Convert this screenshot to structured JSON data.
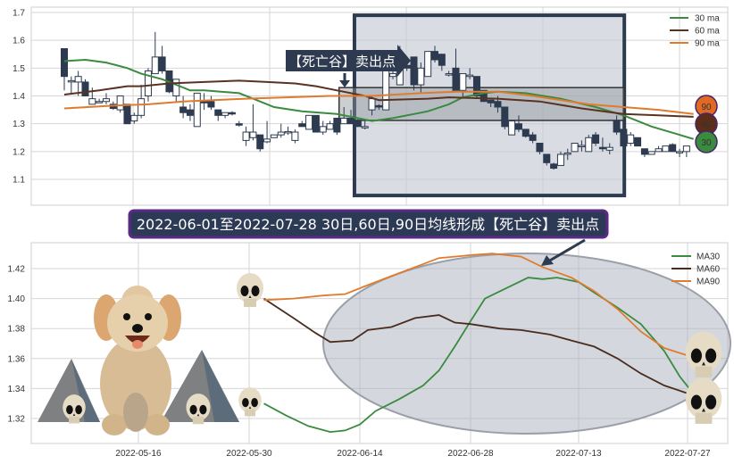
{
  "chart_data": [
    {
      "type": "candlestick",
      "title": "",
      "ylim": [
        1.02,
        1.72
      ],
      "yticks": [
        "1.1",
        "1.2",
        "1.3",
        "1.4",
        "1.5",
        "1.6",
        "1.7"
      ],
      "grid": true,
      "legend_placement": "top-right",
      "legend": [
        "30 ma",
        "60 ma",
        "90 ma"
      ],
      "candles_ohlc": [
        [
          1.57,
          1.57,
          1.42,
          1.47
        ],
        [
          1.455,
          1.47,
          1.41,
          1.455
        ],
        [
          1.45,
          1.49,
          1.4,
          1.47
        ],
        [
          1.45,
          1.46,
          1.4,
          1.4
        ],
        [
          1.37,
          1.43,
          1.37,
          1.39
        ],
        [
          1.38,
          1.39,
          1.375,
          1.38
        ],
        [
          1.38,
          1.41,
          1.37,
          1.39
        ],
        [
          1.37,
          1.38,
          1.35,
          1.355
        ],
        [
          1.35,
          1.4,
          1.34,
          1.4
        ],
        [
          1.37,
          1.37,
          1.3,
          1.3
        ],
        [
          1.31,
          1.34,
          1.3,
          1.33
        ],
        [
          1.33,
          1.44,
          1.32,
          1.39
        ],
        [
          1.4,
          1.5,
          1.38,
          1.49
        ],
        [
          1.48,
          1.63,
          1.48,
          1.54
        ],
        [
          1.54,
          1.58,
          1.48,
          1.49
        ],
        [
          1.49,
          1.49,
          1.41,
          1.415
        ],
        [
          1.4,
          1.46,
          1.38,
          1.46
        ],
        [
          1.36,
          1.4,
          1.32,
          1.34
        ],
        [
          1.35,
          1.37,
          1.31,
          1.33
        ],
        [
          1.29,
          1.41,
          1.29,
          1.41
        ],
        [
          1.38,
          1.41,
          1.35,
          1.375
        ],
        [
          1.38,
          1.4,
          1.35,
          1.36
        ],
        [
          1.35,
          1.35,
          1.31,
          1.33
        ],
        [
          1.33,
          1.34,
          1.32,
          1.34
        ],
        [
          1.34,
          1.345,
          1.33,
          1.335
        ],
        [
          1.3,
          1.31,
          1.29,
          1.295
        ],
        [
          1.24,
          1.29,
          1.22,
          1.27
        ],
        [
          1.25,
          1.37,
          1.24,
          1.27
        ],
        [
          1.26,
          1.26,
          1.2,
          1.21
        ],
        [
          1.235,
          1.31,
          1.23,
          1.245
        ],
        [
          1.25,
          1.26,
          1.25,
          1.26
        ],
        [
          1.26,
          1.3,
          1.25,
          1.27
        ],
        [
          1.27,
          1.29,
          1.26,
          1.272
        ],
        [
          1.24,
          1.28,
          1.23,
          1.27
        ],
        [
          1.3,
          1.31,
          1.29,
          1.29
        ],
        [
          1.28,
          1.33,
          1.28,
          1.33
        ],
        [
          1.33,
          1.33,
          1.27,
          1.27
        ],
        [
          1.27,
          1.31,
          1.26,
          1.29
        ],
        [
          1.28,
          1.31,
          1.28,
          1.3
        ],
        [
          1.32,
          1.32,
          1.26,
          1.27
        ],
        [
          1.3,
          1.36,
          1.3,
          1.32
        ],
        [
          1.32,
          1.35,
          1.3,
          1.3
        ],
        [
          1.31,
          1.32,
          1.29,
          1.29
        ],
        [
          1.285,
          1.31,
          1.28,
          1.29
        ],
        [
          1.35,
          1.4,
          1.33,
          1.39
        ],
        [
          1.365,
          1.37,
          1.35,
          1.36
        ],
        [
          1.35,
          1.54,
          1.35,
          1.51
        ],
        [
          1.47,
          1.52,
          1.46,
          1.48
        ],
        [
          1.44,
          1.58,
          1.44,
          1.54
        ],
        [
          1.51,
          1.52,
          1.49,
          1.5
        ],
        [
          1.54,
          1.54,
          1.42,
          1.44
        ],
        [
          1.44,
          1.52,
          1.41,
          1.5
        ],
        [
          1.47,
          1.56,
          1.47,
          1.56
        ],
        [
          1.56,
          1.58,
          1.52,
          1.53
        ],
        [
          1.55,
          1.55,
          1.49,
          1.51
        ],
        [
          1.48,
          1.49,
          1.47,
          1.48
        ],
        [
          1.5,
          1.57,
          1.42,
          1.42
        ],
        [
          1.42,
          1.48,
          1.39,
          1.48
        ],
        [
          1.47,
          1.5,
          1.46,
          1.475
        ],
        [
          1.47,
          1.47,
          1.39,
          1.4
        ],
        [
          1.42,
          1.42,
          1.38,
          1.38
        ],
        [
          1.385,
          1.385,
          1.36,
          1.375
        ],
        [
          1.38,
          1.4,
          1.34,
          1.36
        ],
        [
          1.36,
          1.36,
          1.28,
          1.29
        ],
        [
          1.26,
          1.31,
          1.26,
          1.31
        ],
        [
          1.3,
          1.33,
          1.27,
          1.28
        ],
        [
          1.28,
          1.28,
          1.25,
          1.255
        ],
        [
          1.26,
          1.27,
          1.23,
          1.24
        ],
        [
          1.23,
          1.23,
          1.19,
          1.2
        ],
        [
          1.19,
          1.19,
          1.15,
          1.16
        ],
        [
          1.155,
          1.16,
          1.135,
          1.14
        ],
        [
          1.15,
          1.2,
          1.15,
          1.19
        ],
        [
          1.19,
          1.21,
          1.17,
          1.195
        ],
        [
          1.2,
          1.23,
          1.2,
          1.23
        ],
        [
          1.22,
          1.24,
          1.2,
          1.222
        ],
        [
          1.2,
          1.26,
          1.2,
          1.25
        ],
        [
          1.26,
          1.27,
          1.22,
          1.23
        ],
        [
          1.215,
          1.25,
          1.2,
          1.21
        ],
        [
          1.205,
          1.23,
          1.19,
          1.215
        ],
        [
          1.31,
          1.33,
          1.26,
          1.27
        ],
        [
          1.28,
          1.28,
          1.22,
          1.22
        ],
        [
          1.23,
          1.27,
          1.22,
          1.26
        ],
        [
          1.25,
          1.25,
          1.22,
          1.22
        ],
        [
          1.21,
          1.21,
          1.18,
          1.19
        ],
        [
          1.19,
          1.2,
          1.19,
          1.2
        ],
        [
          1.2,
          1.22,
          1.2,
          1.21
        ],
        [
          1.2,
          1.22,
          1.2,
          1.22
        ],
        [
          1.225,
          1.23,
          1.2,
          1.2
        ],
        [
          1.2,
          1.21,
          1.18,
          1.2
        ],
        [
          1.2,
          1.22,
          1.18,
          1.22
        ]
      ],
      "series": [
        {
          "name": "30 ma",
          "color": "#3a8a3f",
          "points": [
            [
              1,
              1.525
            ],
            [
              4,
              1.53
            ],
            [
              7,
              1.52
            ],
            [
              10,
              1.5
            ],
            [
              12,
              1.48
            ],
            [
              15,
              1.46
            ],
            [
              17,
              1.44
            ],
            [
              19,
              1.42
            ],
            [
              21,
              1.42
            ],
            [
              26,
              1.41
            ],
            [
              28,
              1.39
            ],
            [
              31,
              1.36
            ],
            [
              35,
              1.345
            ],
            [
              40,
              1.335
            ],
            [
              43,
              1.32
            ],
            [
              45,
              1.31
            ],
            [
              48,
              1.32
            ],
            [
              51,
              1.335
            ],
            [
              53,
              1.345
            ],
            [
              56,
              1.37
            ],
            [
              58,
              1.395
            ],
            [
              61,
              1.41
            ],
            [
              63,
              1.415
            ],
            [
              67,
              1.41
            ],
            [
              72,
              1.39
            ],
            [
              77,
              1.36
            ],
            [
              81,
              1.33
            ],
            [
              85,
              1.29
            ],
            [
              89,
              1.26
            ],
            [
              91,
              1.245
            ]
          ]
        },
        {
          "name": "60 ma",
          "color": "#5a3220",
          "points": [
            [
              1,
              1.405
            ],
            [
              6,
              1.42
            ],
            [
              10,
              1.435
            ],
            [
              12,
              1.435
            ],
            [
              16,
              1.445
            ],
            [
              21,
              1.45
            ],
            [
              26,
              1.455
            ],
            [
              30,
              1.45
            ],
            [
              34,
              1.445
            ],
            [
              37,
              1.435
            ],
            [
              40,
              1.42
            ],
            [
              44,
              1.4
            ],
            [
              46,
              1.385
            ],
            [
              53,
              1.39
            ],
            [
              56,
              1.395
            ],
            [
              63,
              1.39
            ],
            [
              69,
              1.38
            ],
            [
              75,
              1.355
            ],
            [
              81,
              1.335
            ],
            [
              86,
              1.33
            ],
            [
              91,
              1.325
            ]
          ]
        },
        {
          "name": "90 ma",
          "color": "#e07b2e",
          "points": [
            [
              1,
              1.355
            ],
            [
              8,
              1.365
            ],
            [
              13,
              1.37
            ],
            [
              18,
              1.38
            ],
            [
              27,
              1.39
            ],
            [
              39,
              1.4
            ],
            [
              45,
              1.4
            ],
            [
              52,
              1.41
            ],
            [
              57,
              1.415
            ],
            [
              63,
              1.415
            ],
            [
              68,
              1.4
            ],
            [
              76,
              1.37
            ],
            [
              81,
              1.36
            ],
            [
              86,
              1.35
            ],
            [
              91,
              1.335
            ]
          ]
        }
      ],
      "end_badges": [
        {
          "label": "90",
          "color": "#e06a25"
        },
        {
          "label": "60",
          "color": "#5c2e1a"
        },
        {
          "label": "30",
          "color": "#3a8a3f"
        }
      ],
      "annotation_label": "【死亡谷】卖出点",
      "bull_color": "#ffffff",
      "bear_color": "#2d3a4f"
    },
    {
      "type": "line",
      "title": "",
      "ylim": [
        1.303,
        1.437
      ],
      "yticks": [
        "1.32",
        "1.34",
        "1.36",
        "1.38",
        "1.40",
        "1.42"
      ],
      "xticks": [
        "2022-05-16",
        "2022-05-30",
        "2022-06-14",
        "2022-06-28",
        "2022-07-13",
        "2022-07-27"
      ],
      "grid": true,
      "legend_placement": "top-right",
      "series": [
        {
          "name": "MA30",
          "color": "#3a8a3f",
          "points": [
            [
              "2022-06-01",
              1.33
            ],
            [
              "2022-06-04",
              1.322
            ],
            [
              "2022-06-07",
              1.315
            ],
            [
              "2022-06-10",
              1.311
            ],
            [
              "2022-06-12",
              1.312
            ],
            [
              "2022-06-14",
              1.316
            ],
            [
              "2022-06-16",
              1.325
            ],
            [
              "2022-06-19",
              1.333
            ],
            [
              "2022-06-22",
              1.342
            ],
            [
              "2022-06-24",
              1.352
            ],
            [
              "2022-06-26",
              1.368
            ],
            [
              "2022-06-28",
              1.385
            ],
            [
              "2022-06-30",
              1.4
            ],
            [
              "2022-07-03",
              1.407
            ],
            [
              "2022-07-06",
              1.414
            ],
            [
              "2022-07-08",
              1.413
            ],
            [
              "2022-07-10",
              1.414
            ],
            [
              "2022-07-13",
              1.411
            ],
            [
              "2022-07-15",
              1.404
            ],
            [
              "2022-07-18",
              1.394
            ],
            [
              "2022-07-21",
              1.383
            ],
            [
              "2022-07-24",
              1.365
            ],
            [
              "2022-07-26",
              1.348
            ],
            [
              "2022-07-28",
              1.335
            ]
          ]
        },
        {
          "name": "MA60",
          "color": "#4a2c1f",
          "points": [
            [
              "2022-06-01",
              1.4
            ],
            [
              "2022-06-05",
              1.387
            ],
            [
              "2022-06-08",
              1.377
            ],
            [
              "2022-06-10",
              1.371
            ],
            [
              "2022-06-13",
              1.372
            ],
            [
              "2022-06-15",
              1.379
            ],
            [
              "2022-06-18",
              1.381
            ],
            [
              "2022-06-21",
              1.387
            ],
            [
              "2022-06-24",
              1.389
            ],
            [
              "2022-06-26",
              1.384
            ],
            [
              "2022-06-28",
              1.383
            ],
            [
              "2022-07-02",
              1.38
            ],
            [
              "2022-07-05",
              1.379
            ],
            [
              "2022-07-09",
              1.376
            ],
            [
              "2022-07-12",
              1.372
            ],
            [
              "2022-07-15",
              1.368
            ],
            [
              "2022-07-18",
              1.36
            ],
            [
              "2022-07-21",
              1.35
            ],
            [
              "2022-07-24",
              1.342
            ],
            [
              "2022-07-28",
              1.335
            ]
          ]
        },
        {
          "name": "MA90",
          "color": "#e07b2e",
          "points": [
            [
              "2022-06-01",
              1.399
            ],
            [
              "2022-06-05",
              1.4
            ],
            [
              "2022-06-09",
              1.402
            ],
            [
              "2022-06-12",
              1.403
            ],
            [
              "2022-06-15",
              1.409
            ],
            [
              "2022-06-18",
              1.415
            ],
            [
              "2022-06-21",
              1.421
            ],
            [
              "2022-06-24",
              1.427
            ],
            [
              "2022-06-26",
              1.428
            ],
            [
              "2022-06-28",
              1.429
            ],
            [
              "2022-07-01",
              1.43
            ],
            [
              "2022-07-05",
              1.428
            ],
            [
              "2022-07-08",
              1.421
            ],
            [
              "2022-07-12",
              1.414
            ],
            [
              "2022-07-15",
              1.405
            ],
            [
              "2022-07-18",
              1.393
            ],
            [
              "2022-07-21",
              1.378
            ],
            [
              "2022-07-24",
              1.367
            ],
            [
              "2022-07-27",
              1.362
            ]
          ]
        }
      ]
    }
  ],
  "banner": {
    "text": "2022-06-01至2022-07-28 30日,60日,90日均线形成【死亡谷】卖出点"
  }
}
